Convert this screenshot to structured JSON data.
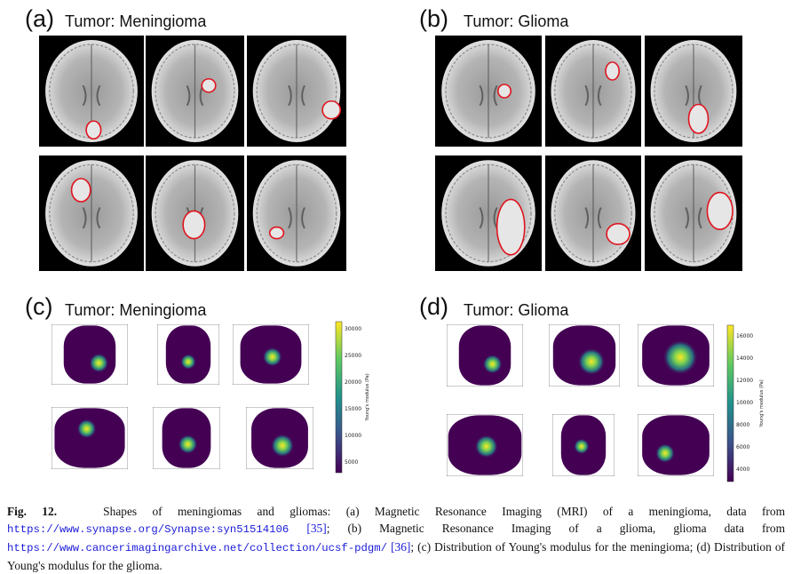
{
  "panels": {
    "a": {
      "label": "(a)",
      "title": "Tumor: Meningioma"
    },
    "b": {
      "label": "(b)",
      "title": "Tumor: Glioma"
    },
    "c": {
      "label": "(c)",
      "title": "Tumor: Meningioma"
    },
    "d": {
      "label": "(d)",
      "title": "Tumor: Glioma"
    }
  },
  "colorbar_c": {
    "label": "Young's modulus (Pa)",
    "ticks": [
      "30000",
      "25000",
      "20000",
      "15000",
      "10000",
      "5000"
    ]
  },
  "colorbar_d": {
    "label": "Young's modulus (Pa)",
    "ticks": [
      "16000",
      "14000",
      "12000",
      "10000",
      "8000",
      "6000",
      "4000"
    ]
  },
  "caption": {
    "fig_label": "Fig. 12.",
    "text_1": "Shapes of meningiomas and gliomas: (a) Magnetic Resonance Imaging (MRI) of a meningioma, data from",
    "url_1": "https://www.synapse.org/Synapse:syn51514106",
    "ref_1": "[35]",
    "text_2": "; (b) Magnetic Resonance Imaging of a glioma, glioma data from",
    "url_2": "https://www.cancerimagingarchive.net/collection/ucsf-pdgm/",
    "ref_2": "[36]",
    "text_3": "; (c) Distribution of Young's modulus for the meningioma; (d) Distribution of Young's modulus for the glioma."
  }
}
